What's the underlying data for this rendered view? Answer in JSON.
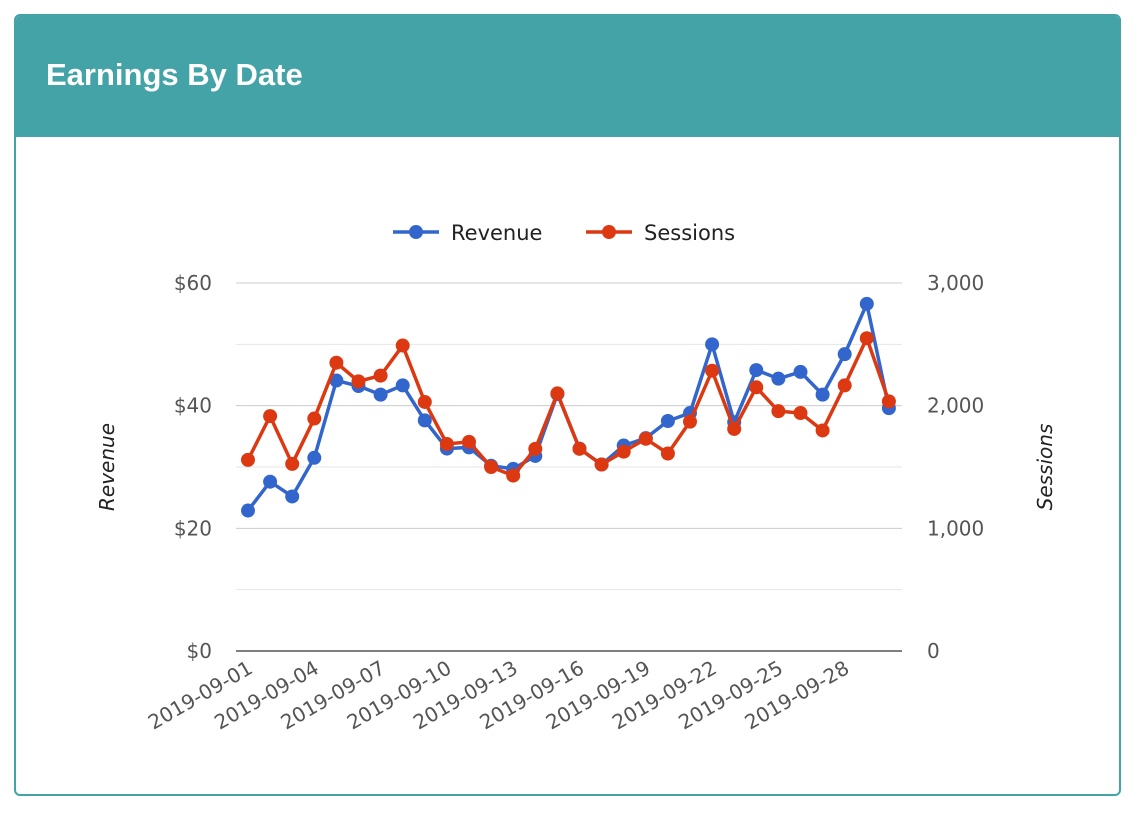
{
  "card": {
    "title": "Earnings By Date"
  },
  "colors": {
    "header": "#43a3a7",
    "revenue": "#3366cc",
    "sessions": "#dc3912",
    "grid": "#cccccc",
    "grid_minor": "#e6e6e6"
  },
  "chart_data": {
    "type": "line",
    "title": "",
    "legend": "top",
    "x": [
      "2019-09-01",
      "2019-09-02",
      "2019-09-03",
      "2019-09-04",
      "2019-09-05",
      "2019-09-06",
      "2019-09-07",
      "2019-09-08",
      "2019-09-09",
      "2019-09-10",
      "2019-09-11",
      "2019-09-12",
      "2019-09-13",
      "2019-09-14",
      "2019-09-15",
      "2019-09-16",
      "2019-09-17",
      "2019-09-18",
      "2019-09-19",
      "2019-09-20",
      "2019-09-21",
      "2019-09-22",
      "2019-09-23",
      "2019-09-24",
      "2019-09-25",
      "2019-09-26",
      "2019-09-27",
      "2019-09-28",
      "2019-09-29",
      "2019-09-30"
    ],
    "x_tick_labels": [
      "2019-09-01",
      "2019-09-04",
      "2019-09-07",
      "2019-09-10",
      "2019-09-13",
      "2019-09-16",
      "2019-09-19",
      "2019-09-22",
      "2019-09-25",
      "2019-09-28"
    ],
    "series": [
      {
        "name": "Revenue",
        "axis": "left",
        "color": "#3366cc",
        "values": [
          22.9,
          27.6,
          25.2,
          31.5,
          44.1,
          43.2,
          41.8,
          43.3,
          37.6,
          33.0,
          33.2,
          30.2,
          29.7,
          31.8,
          41.9,
          33.0,
          30.4,
          33.5,
          34.7,
          37.5,
          38.8,
          50.0,
          37.3,
          45.8,
          44.4,
          45.5,
          41.8,
          48.4,
          56.6,
          39.6
        ]
      },
      {
        "name": "Sessions",
        "axis": "right",
        "color": "#dc3912",
        "values": [
          1558,
          1915,
          1525,
          1895,
          2350,
          2198,
          2245,
          2490,
          2030,
          1688,
          1705,
          1500,
          1430,
          1648,
          2100,
          1648,
          1520,
          1625,
          1730,
          1610,
          1870,
          2285,
          1810,
          2150,
          1955,
          1940,
          1798,
          2165,
          2550,
          2035
        ]
      }
    ],
    "y_left": {
      "label": "Revenue",
      "ylim": [
        0,
        60
      ],
      "ticks": [
        0,
        20,
        40,
        60
      ],
      "tick_labels": [
        "$0",
        "$20",
        "$40",
        "$60"
      ]
    },
    "y_right": {
      "label": "Sessions",
      "ylim": [
        0,
        3000
      ],
      "ticks": [
        0,
        1000,
        2000,
        3000
      ],
      "tick_labels": [
        "0",
        "1,000",
        "2,000",
        "3,000"
      ]
    },
    "grid": true
  }
}
